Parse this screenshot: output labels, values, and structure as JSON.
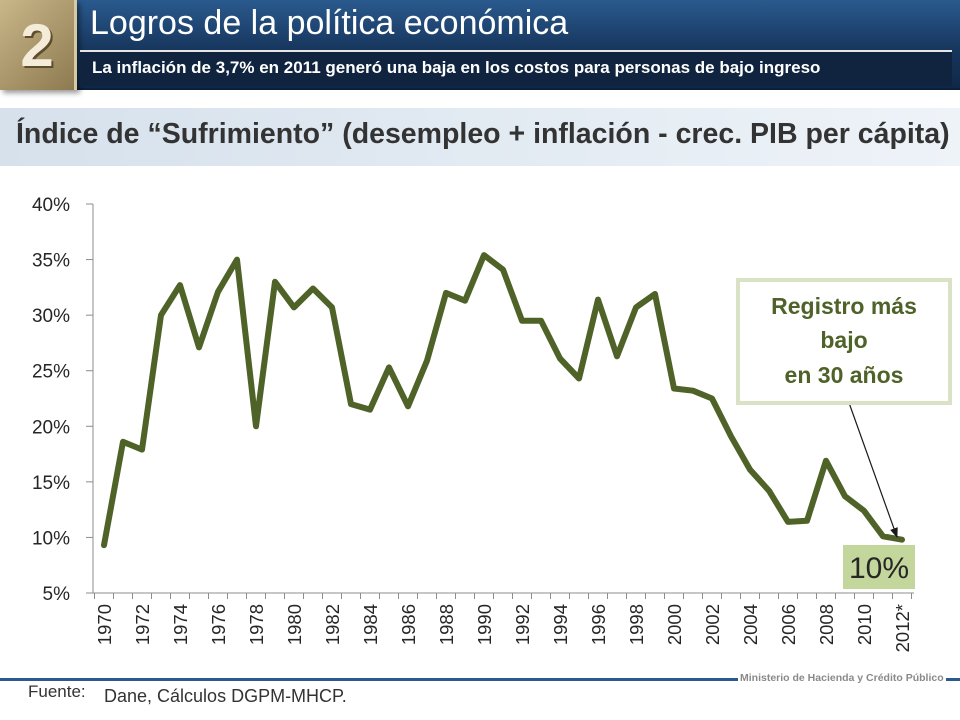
{
  "header": {
    "number": "2",
    "title": "Logros de la política económica",
    "subtitle": "La inflación de 3,7% en 2011 generó una baja en los costos para personas de bajo ingreso"
  },
  "section_title": "Índice de “Sufrimiento” (desempleo + inflación - crec. PIB per cápita)",
  "chart_data": {
    "type": "line",
    "title": "",
    "xlabel": "",
    "ylabel": "",
    "categories": [
      "1970",
      "1971",
      "1972",
      "1973",
      "1974",
      "1975",
      "1976",
      "1977",
      "1978",
      "1979",
      "1980",
      "1981",
      "1982",
      "1983",
      "1984",
      "1985",
      "1986",
      "1987",
      "1988",
      "1989",
      "1990",
      "1991",
      "1992",
      "1993",
      "1994",
      "1995",
      "1996",
      "1997",
      "1998",
      "1999",
      "2000",
      "2001",
      "2002",
      "2003",
      "2004",
      "2005",
      "2006",
      "2007",
      "2008",
      "2009",
      "2010",
      "2011",
      "2012*"
    ],
    "x_tick_labels": [
      "1970",
      "1972",
      "1974",
      "1976",
      "1978",
      "1980",
      "1982",
      "1984",
      "1986",
      "1988",
      "1990",
      "1992",
      "1994",
      "1996",
      "1998",
      "2000",
      "2002",
      "2004",
      "2006",
      "2008",
      "2010",
      "2012*"
    ],
    "series": [
      {
        "color": "#4f6228",
        "values": [
          9.3,
          18.6,
          17.9,
          30.0,
          32.7,
          27.1,
          32.1,
          35.0,
          20.0,
          33.0,
          30.7,
          32.4,
          30.7,
          22.0,
          21.5,
          25.3,
          21.8,
          25.9,
          32.0,
          31.3,
          35.4,
          34.1,
          29.5,
          29.5,
          26.1,
          24.3,
          31.4,
          26.3,
          30.7,
          31.9,
          23.4,
          23.2,
          22.5,
          19.1,
          16.1,
          14.2,
          11.4,
          11.5,
          16.9,
          13.7,
          12.4,
          10.1,
          9.8
        ]
      }
    ],
    "y_tick_labels": [
      "40%",
      "35%",
      "30%",
      "25%",
      "20%",
      "15%",
      "10%",
      "5%"
    ],
    "ylim": [
      5,
      40
    ],
    "y_unit": "%",
    "grid": false,
    "annotations": {
      "callout_lines": [
        "Registro más",
        "bajo",
        "en 30 años"
      ],
      "callout_color": "#4f6228",
      "last_value_label": "10%"
    }
  },
  "footer": {
    "source_label": "Fuente:",
    "source_text": "Dane, Cálculos DGPM-MHCP.",
    "ministry": "Ministerio de Hacienda y Crédito Público"
  }
}
